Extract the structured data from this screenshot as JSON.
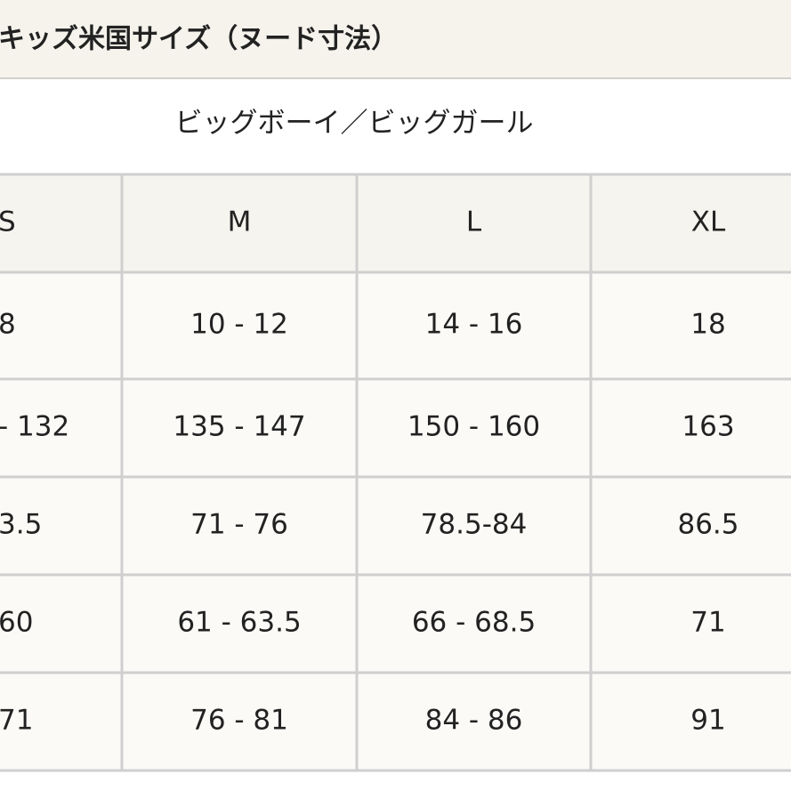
{
  "title": "キッズ米国サイズ（ヌード寸法）",
  "subtitle": "ビッグボーイ／ビッグガール",
  "table": {
    "header": [
      "S",
      "M",
      "L",
      "XL"
    ],
    "rows": [
      [
        "8",
        "10 - 12",
        "14 - 16",
        "18"
      ],
      [
        "- 132",
        "135 - 147",
        "150 - 160",
        "163"
      ],
      [
        "3.5",
        "71 - 76",
        "78.5-84",
        "86.5"
      ],
      [
        "60",
        "61 - 63.5",
        "66 - 68.5",
        "71"
      ],
      [
        "71",
        "76 - 81",
        "84 - 86",
        "91"
      ]
    ]
  }
}
